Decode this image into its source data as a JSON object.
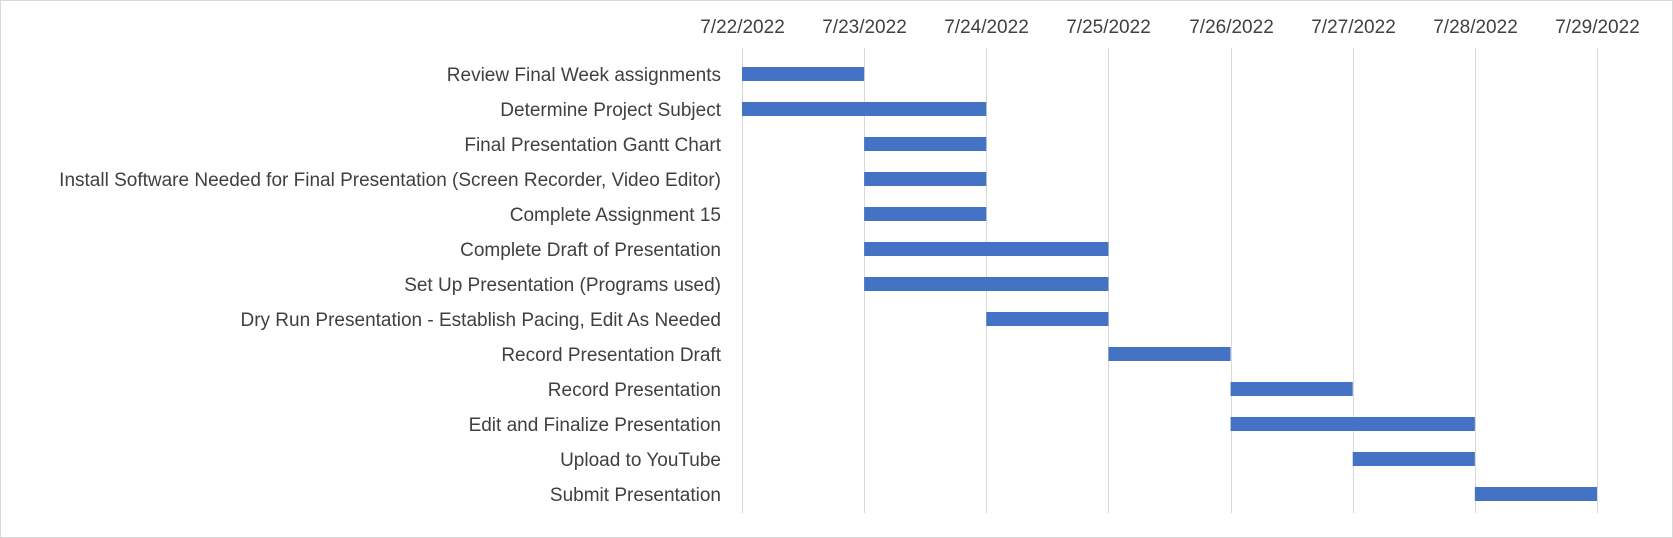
{
  "chart_data": {
    "type": "bar",
    "subtype": "gantt",
    "title": "",
    "xlabel": "",
    "ylabel": "",
    "x_axis_position": "top",
    "x_ticks": [
      "7/22/2022",
      "7/23/2022",
      "7/24/2022",
      "7/25/2022",
      "7/26/2022",
      "7/27/2022",
      "7/28/2022",
      "7/29/2022"
    ],
    "xlim": [
      "7/22/2022",
      "7/29/2022"
    ],
    "grid": "vertical",
    "legend": "none",
    "colors": {
      "bar": "#4472C4",
      "grid": "#d9d9d9",
      "text": "#404040"
    },
    "tasks": [
      {
        "name": "Review Final Week assignments",
        "start": "7/22/2022",
        "end": "7/23/2022"
      },
      {
        "name": "Determine Project Subject",
        "start": "7/22/2022",
        "end": "7/24/2022"
      },
      {
        "name": "Final Presentation Gantt Chart",
        "start": "7/23/2022",
        "end": "7/24/2022"
      },
      {
        "name": "Install Software Needed for Final Presentation (Screen Recorder, Video Editor)",
        "start": "7/23/2022",
        "end": "7/24/2022"
      },
      {
        "name": "Complete Assignment 15",
        "start": "7/23/2022",
        "end": "7/24/2022"
      },
      {
        "name": "Complete Draft of Presentation",
        "start": "7/23/2022",
        "end": "7/25/2022"
      },
      {
        "name": "Set Up Presentation (Programs used)",
        "start": "7/23/2022",
        "end": "7/25/2022"
      },
      {
        "name": "Dry Run Presentation - Establish Pacing, Edit As Needed",
        "start": "7/24/2022",
        "end": "7/25/2022"
      },
      {
        "name": "Record Presentation Draft",
        "start": "7/25/2022",
        "end": "7/26/2022"
      },
      {
        "name": "Record Presentation",
        "start": "7/26/2022",
        "end": "7/27/2022"
      },
      {
        "name": "Edit and Finalize Presentation",
        "start": "7/26/2022",
        "end": "7/28/2022"
      },
      {
        "name": "Upload to YouTube",
        "start": "7/27/2022",
        "end": "7/28/2022"
      },
      {
        "name": "Submit Presentation",
        "start": "7/28/2022",
        "end": "7/29/2022"
      }
    ]
  }
}
